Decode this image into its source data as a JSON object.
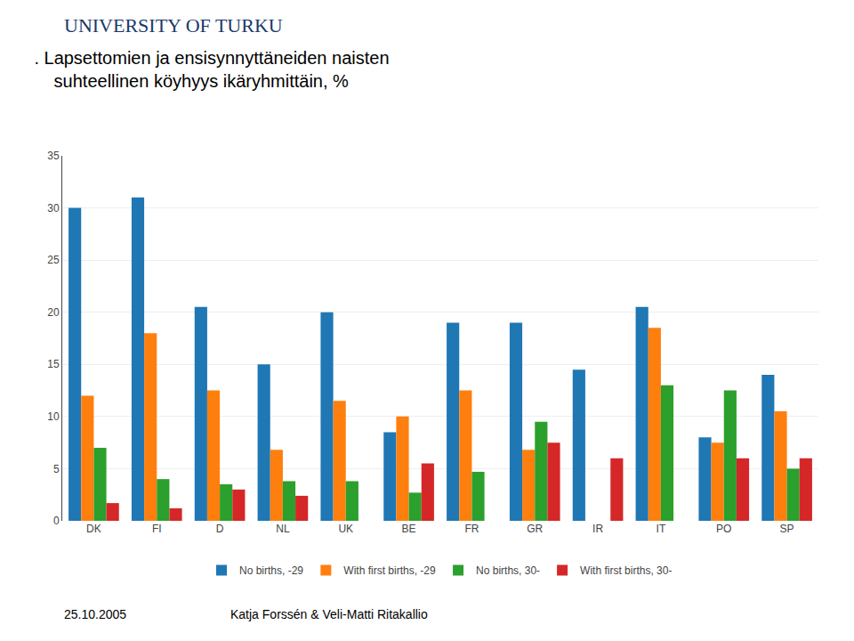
{
  "chart_data": {
    "type": "bar",
    "title": ". Lapsettomien ja ensisynnyttäneiden naisten",
    "subtitle": "    suhteellinen köyhyys ikäryhmittäin, %",
    "categories": [
      "DK",
      "FI",
      "D",
      "NL",
      "UK",
      "BE",
      "FR",
      "GR",
      "IR",
      "IT",
      "PO",
      "SP"
    ],
    "series": [
      {
        "name": "No births, -29",
        "values": [
          30,
          31,
          20.5,
          15,
          20,
          8.5,
          19,
          19,
          14.5,
          20.5,
          8,
          14
        ]
      },
      {
        "name": "With first births, -29",
        "values": [
          12,
          18,
          12.5,
          6.8,
          11.5,
          10,
          12.5,
          6.8,
          0,
          18.5,
          7.5,
          10.5
        ]
      },
      {
        "name": "No births, 30-",
        "values": [
          7,
          4,
          3.5,
          3.8,
          3.8,
          2.7,
          4.7,
          9.5,
          0,
          13,
          12.5,
          5
        ]
      },
      {
        "name": "With first births, 30-",
        "values": [
          1.7,
          1.2,
          3.0,
          2.4,
          0,
          5.5,
          0,
          7.5,
          6,
          0,
          6,
          6
        ]
      }
    ],
    "ylim": [
      0,
      35
    ],
    "yticks": [
      0,
      5,
      10,
      15,
      20,
      25,
      30,
      35
    ],
    "grid": true,
    "legend": "bottom",
    "annotations": [
      "UNIVERSITY OF TURKU",
      "25.10.2005",
      "Katja Forssén & Veli-Matti Ritakallio"
    ]
  }
}
